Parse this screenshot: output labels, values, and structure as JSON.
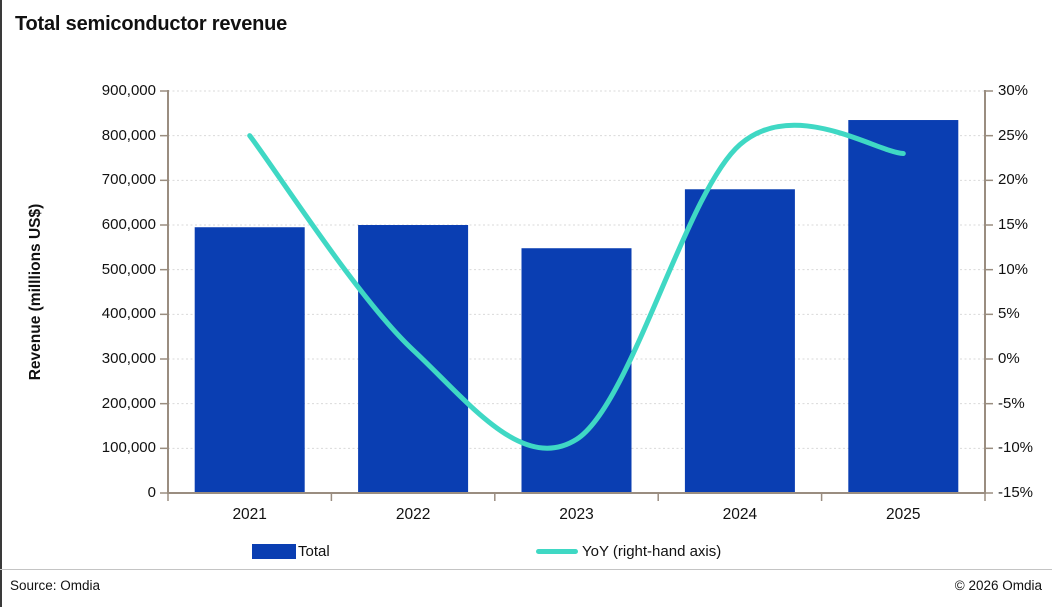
{
  "page": {
    "title": "Total semiconductor revenue",
    "source_note": "Source: Omdia",
    "copyright": "© 2026 Omdia"
  },
  "legend": {
    "items": [
      {
        "label": "Total",
        "series_type": "bar",
        "color": "#0A3EB2"
      },
      {
        "label": "YoY (right-hand axis)",
        "series_type": "line",
        "color": "#3FD8C4"
      }
    ]
  },
  "colors": {
    "bar_blue": "#0A3EB2",
    "line_teal": "#3FD8C4",
    "axis_line": "#9A8D80",
    "gridline": "#D9D9D9",
    "text": "#111111",
    "divider": "#C4C4C4",
    "left_border": "#3A3A3A"
  },
  "chart_data": {
    "type": "bar",
    "subtype": "combo-bar-line",
    "title": "Total semiconductor revenue",
    "categories": [
      "2021",
      "2022",
      "2023",
      "2024",
      "2025"
    ],
    "series": [
      {
        "name": "Total",
        "type": "bar",
        "axis": "left",
        "color": "#0A3EB2",
        "values": [
          595000,
          600000,
          548000,
          680000,
          835000
        ]
      },
      {
        "name": "YoY (right-hand axis)",
        "type": "line",
        "axis": "right",
        "color": "#3FD8C4",
        "unit": "%",
        "values": [
          25,
          1,
          -9,
          24,
          23
        ]
      }
    ],
    "left_axis": {
      "label": "Revenue (milllions US$)",
      "min": 0,
      "max": 900000,
      "step": 100000,
      "tick_labels": [
        "0",
        "100,000",
        "200,000",
        "300,000",
        "400,000",
        "500,000",
        "600,000",
        "700,000",
        "800,000",
        "900,000"
      ]
    },
    "right_axis": {
      "min": -15,
      "max": 30,
      "step": 5,
      "tick_labels": [
        "-15%",
        "-10%",
        "-5%",
        "0%",
        "5%",
        "10%",
        "15%",
        "20%",
        "25%",
        "30%"
      ]
    },
    "grid": true,
    "line_smoothing": "spline",
    "legend_position": "bottom"
  }
}
